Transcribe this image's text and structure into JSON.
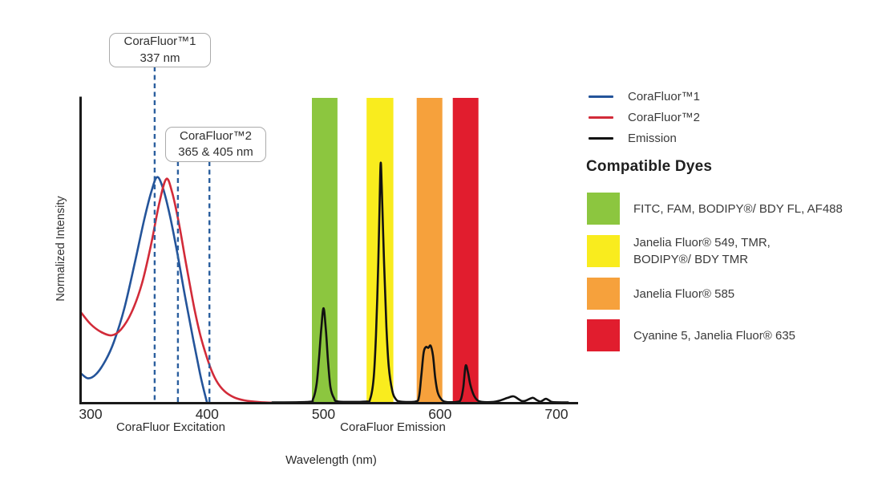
{
  "chart_data": {
    "type": "line",
    "title": "",
    "xlabel": "Wavelength (nm)",
    "ylabel": "Normalized Intensity",
    "x_ticks": [
      300,
      400,
      500,
      600,
      700
    ],
    "xlim": [
      292,
      718
    ],
    "ylim": [
      0,
      1
    ],
    "grid": false,
    "legend_position": "right",
    "dash_color": "#2B5F9E",
    "sections": {
      "excitation_label": "CoraFluor Excitation",
      "emission_label": "CoraFluor Emission"
    },
    "annotations": [
      {
        "title": "CoraFluor™1",
        "value": "337 nm",
        "lines_nm": [
          355
        ],
        "line_start_y": 83
      },
      {
        "title": "CoraFluor™2",
        "value": "365 & 405 nm",
        "lines_nm": [
          375,
          402
        ],
        "line_start_y": 201
      }
    ],
    "bands": [
      {
        "name": "green",
        "color": "#8CC63F",
        "nm": [
          490,
          512
        ]
      },
      {
        "name": "yellow",
        "color": "#F9EC1E",
        "nm": [
          537,
          560
        ]
      },
      {
        "name": "orange",
        "color": "#F6A13C",
        "nm": [
          580,
          602
        ]
      },
      {
        "name": "red",
        "color": "#E11D2E",
        "nm": [
          611,
          633
        ]
      }
    ],
    "series": [
      {
        "key": "corafluor1-excitation-curve",
        "name": "CoraFluor™1",
        "color": "#24549A",
        "points": [
          [
            292,
            0.095
          ],
          [
            298,
            0.08
          ],
          [
            305,
            0.095
          ],
          [
            313,
            0.14
          ],
          [
            320,
            0.2
          ],
          [
            329,
            0.31
          ],
          [
            338,
            0.46
          ],
          [
            346,
            0.6
          ],
          [
            352,
            0.69
          ],
          [
            357,
            0.74
          ],
          [
            362,
            0.705
          ],
          [
            368,
            0.615
          ],
          [
            374,
            0.5
          ],
          [
            381,
            0.35
          ],
          [
            388,
            0.21
          ],
          [
            394,
            0.095
          ],
          [
            398,
            0.03
          ],
          [
            400,
            0.0
          ]
        ]
      },
      {
        "key": "corafluor2-excitation-curve",
        "name": "CoraFluor™2",
        "color": "#D22B39",
        "points": [
          [
            292,
            0.295
          ],
          [
            300,
            0.258
          ],
          [
            309,
            0.232
          ],
          [
            318,
            0.221
          ],
          [
            326,
            0.24
          ],
          [
            335,
            0.295
          ],
          [
            344,
            0.39
          ],
          [
            352,
            0.52
          ],
          [
            359,
            0.655
          ],
          [
            365,
            0.734
          ],
          [
            370,
            0.69
          ],
          [
            376,
            0.585
          ],
          [
            382,
            0.455
          ],
          [
            389,
            0.31
          ],
          [
            395,
            0.21
          ],
          [
            402,
            0.124
          ],
          [
            408,
            0.072
          ],
          [
            415,
            0.038
          ],
          [
            423,
            0.018
          ],
          [
            432,
            0.008
          ],
          [
            445,
            0.002
          ],
          [
            458,
            0.0
          ]
        ]
      },
      {
        "key": "emission-curve",
        "name": "Emission",
        "color": "#121212",
        "points": [
          [
            456,
            0.001
          ],
          [
            487,
            0.003
          ],
          [
            491,
            0.012
          ],
          [
            494,
            0.06
          ],
          [
            496,
            0.14
          ],
          [
            498,
            0.24
          ],
          [
            500,
            0.31
          ],
          [
            502,
            0.24
          ],
          [
            504,
            0.13
          ],
          [
            506,
            0.05
          ],
          [
            509,
            0.015
          ],
          [
            513,
            0.004
          ],
          [
            536,
            0.004
          ],
          [
            540,
            0.012
          ],
          [
            543,
            0.08
          ],
          [
            545,
            0.22
          ],
          [
            547,
            0.46
          ],
          [
            548,
            0.62
          ],
          [
            549,
            0.784
          ],
          [
            550,
            0.71
          ],
          [
            552,
            0.46
          ],
          [
            554,
            0.25
          ],
          [
            556,
            0.12
          ],
          [
            559,
            0.04
          ],
          [
            562,
            0.012
          ],
          [
            566,
            0.004
          ],
          [
            579,
            0.004
          ],
          [
            582,
            0.02
          ],
          [
            584,
            0.09
          ],
          [
            586,
            0.165
          ],
          [
            588,
            0.183
          ],
          [
            590,
            0.18
          ],
          [
            592,
            0.187
          ],
          [
            594,
            0.155
          ],
          [
            596,
            0.08
          ],
          [
            598,
            0.035
          ],
          [
            601,
            0.012
          ],
          [
            605,
            0.003
          ],
          [
            615,
            0.003
          ],
          [
            618,
            0.012
          ],
          [
            620,
            0.05
          ],
          [
            622,
            0.121
          ],
          [
            624,
            0.1
          ],
          [
            626,
            0.06
          ],
          [
            629,
            0.025
          ],
          [
            632,
            0.009
          ],
          [
            636,
            0.003
          ],
          [
            646,
            0.003
          ],
          [
            652,
            0.008
          ],
          [
            658,
            0.016
          ],
          [
            663,
            0.021
          ],
          [
            667,
            0.013
          ],
          [
            670,
            0.006
          ],
          [
            673,
            0.006
          ],
          [
            677,
            0.013
          ],
          [
            680,
            0.016
          ],
          [
            683,
            0.009
          ],
          [
            686,
            0.004
          ],
          [
            688,
            0.007
          ],
          [
            691,
            0.013
          ],
          [
            694,
            0.007
          ],
          [
            697,
            0.002
          ],
          [
            710,
            0.001
          ]
        ]
      }
    ]
  },
  "legend": {
    "items": [
      {
        "label": "CoraFluor™1",
        "color": "#24549A"
      },
      {
        "label": "CoraFluor™2",
        "color": "#D22B39"
      },
      {
        "label": "Emission",
        "color": "#121212"
      }
    ]
  },
  "dyes": {
    "heading": "Compatible Dyes",
    "items": [
      {
        "color": "#8CC63F",
        "label": "FITC, FAM, BODIPY®/ BDY FL, AF488"
      },
      {
        "color": "#F9EC1E",
        "label": "Janelia Fluor® 549, TMR,\nBODIPY®/ BDY TMR"
      },
      {
        "color": "#F6A13C",
        "label": "Janelia Fluor® 585"
      },
      {
        "color": "#E11D2E",
        "label": "Cyanine 5, Janelia Fluor® 635"
      }
    ]
  }
}
